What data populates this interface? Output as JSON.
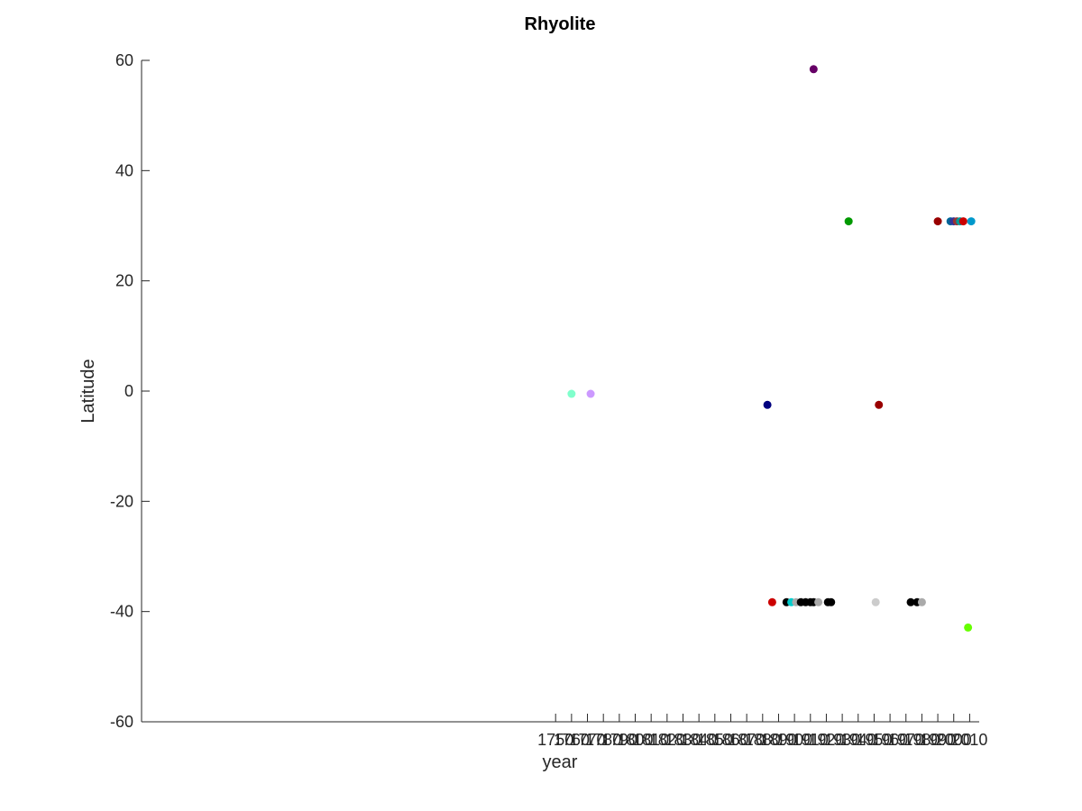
{
  "chart_data": {
    "type": "scatter",
    "title": "Rhyolite",
    "xlabel": "year",
    "ylabel": "Latitude",
    "xlim": [
      1490,
      2016
    ],
    "ylim": [
      -60,
      60
    ],
    "yticks": [
      -60,
      -40,
      -20,
      0,
      20,
      40,
      60
    ],
    "xticks": [
      1750,
      1760,
      1770,
      1780,
      1790,
      1800,
      1810,
      1820,
      1830,
      1840,
      1850,
      1860,
      1870,
      1880,
      1890,
      1900,
      1910,
      1920,
      1930,
      1940,
      1950,
      1960,
      1970,
      1980,
      1990,
      2000,
      2010
    ],
    "xtick_labels": [
      "1750",
      "1760",
      "1770",
      "1780",
      "1790",
      "1800",
      "1810",
      "1820",
      "1830",
      "1840",
      "1850",
      "1860",
      "1870",
      "1880",
      "1890",
      "1900",
      "1910",
      "1920",
      "1930",
      "1940",
      "1950",
      "1960",
      "1970",
      "1980",
      "1990",
      "2000",
      "2010"
    ],
    "grid": false,
    "legend": "none",
    "points": [
      {
        "x": 1760,
        "y": -0.5,
        "color": "#80ffcc"
      },
      {
        "x": 1772,
        "y": -0.5,
        "color": "#cc99ff"
      },
      {
        "x": 1883,
        "y": -2.5,
        "color": "#000080"
      },
      {
        "x": 1886,
        "y": -38.3,
        "color": "#cc0000"
      },
      {
        "x": 1895,
        "y": -38.3,
        "color": "#000000"
      },
      {
        "x": 1898,
        "y": -38.3,
        "color": "#00cccc"
      },
      {
        "x": 1901,
        "y": -38.3,
        "color": "#aaaaaa"
      },
      {
        "x": 1904,
        "y": -38.3,
        "color": "#000000"
      },
      {
        "x": 1907,
        "y": -38.3,
        "color": "#000000"
      },
      {
        "x": 1910,
        "y": -38.3,
        "color": "#000000"
      },
      {
        "x": 1912,
        "y": -38.3,
        "color": "#000000"
      },
      {
        "x": 1912,
        "y": 58.4,
        "color": "#660066"
      },
      {
        "x": 1915,
        "y": -38.3,
        "color": "#aaaaaa"
      },
      {
        "x": 1921,
        "y": -38.3,
        "color": "#000000"
      },
      {
        "x": 1923,
        "y": -38.3,
        "color": "#000000"
      },
      {
        "x": 1934,
        "y": 30.8,
        "color": "#009900"
      },
      {
        "x": 1951,
        "y": -38.3,
        "color": "#cccccc"
      },
      {
        "x": 1953,
        "y": -2.5,
        "color": "#990000"
      },
      {
        "x": 1973,
        "y": -38.3,
        "color": "#000000"
      },
      {
        "x": 1977,
        "y": -38.3,
        "color": "#000000"
      },
      {
        "x": 1980,
        "y": -38.3,
        "color": "#aaaaaa"
      },
      {
        "x": 1990,
        "y": 30.8,
        "color": "#990000"
      },
      {
        "x": 1998,
        "y": 30.8,
        "color": "#006699"
      },
      {
        "x": 2000,
        "y": 30.8,
        "color": "#333399"
      },
      {
        "x": 2002,
        "y": 30.8,
        "color": "#993333"
      },
      {
        "x": 2004,
        "y": 30.8,
        "color": "#009999"
      },
      {
        "x": 2006,
        "y": 30.8,
        "color": "#cc0000"
      },
      {
        "x": 2009,
        "y": -42.9,
        "color": "#66ff00"
      },
      {
        "x": 2011,
        "y": 30.8,
        "color": "#0099cc"
      }
    ]
  }
}
